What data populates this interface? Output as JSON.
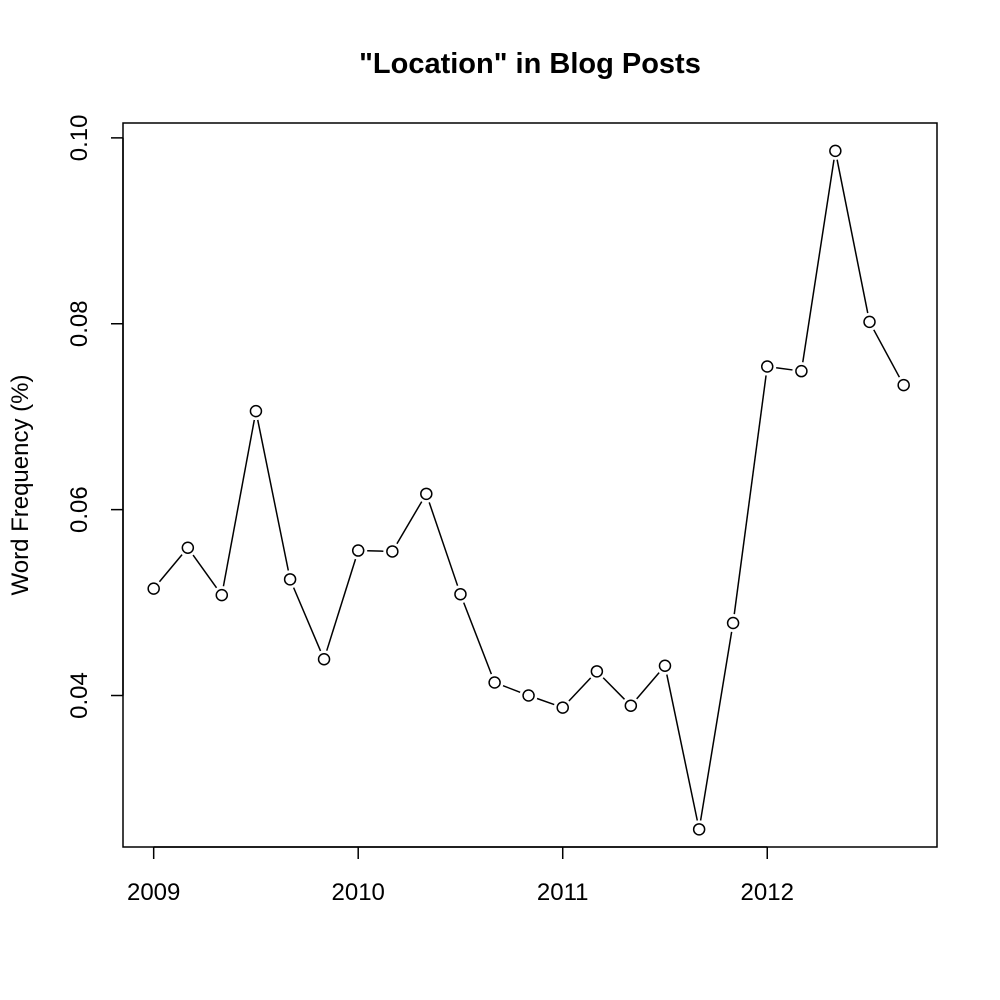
{
  "chart_data": {
    "type": "line",
    "title": "\"Location\" in Blog Posts",
    "xlabel": "",
    "ylabel": "Word Frequency (%)",
    "xlim": [
      2008.85,
      2012.83
    ],
    "ylim": [
      0.0237,
      0.1016
    ],
    "x_ticks": [
      2009,
      2010,
      2011,
      2012
    ],
    "x_tick_labels": [
      "2009",
      "2010",
      "2011",
      "2012"
    ],
    "y_ticks": [
      0.04,
      0.06,
      0.08,
      0.1
    ],
    "y_tick_labels": [
      "0.04",
      "0.06",
      "0.08",
      "0.10"
    ],
    "grid": false,
    "legend": "none",
    "marker": "open-circle",
    "line_color": "#000000",
    "series": [
      {
        "x": [
          2009.0,
          2009.167,
          2009.333,
          2009.5,
          2009.667,
          2009.833,
          2010.0,
          2010.167,
          2010.333,
          2010.5,
          2010.667,
          2010.833,
          2011.0,
          2011.167,
          2011.333,
          2011.5,
          2011.667,
          2011.833,
          2012.0,
          2012.167,
          2012.333,
          2012.5,
          2012.667
        ],
        "y": [
          0.0515,
          0.0559,
          0.0508,
          0.0706,
          0.0525,
          0.0439,
          0.0556,
          0.0555,
          0.0617,
          0.0509,
          0.0414,
          0.04,
          0.0387,
          0.0426,
          0.0389,
          0.0432,
          0.0256,
          0.0478,
          0.0754,
          0.0749,
          0.0986,
          0.0802,
          0.0734
        ]
      }
    ]
  }
}
